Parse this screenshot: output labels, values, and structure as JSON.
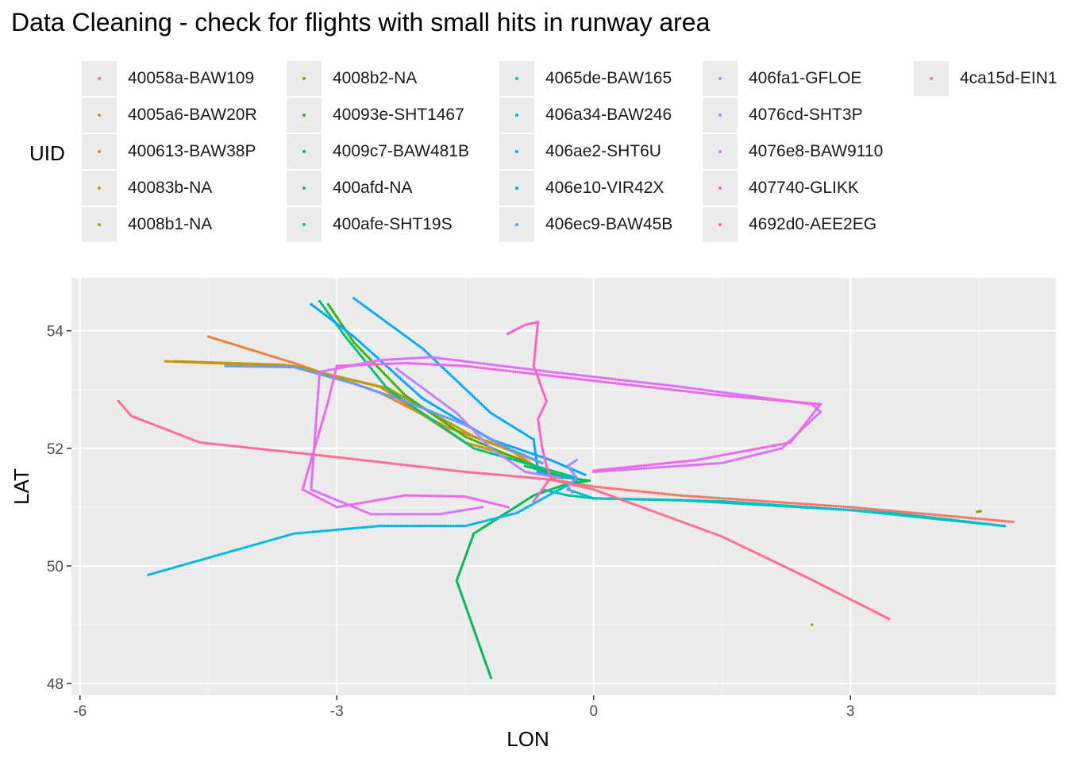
{
  "title": "Data Cleaning - check for flights with small hits in runway area",
  "legend_title": "UID",
  "chart_data": {
    "type": "scatter",
    "title": "Data Cleaning - check for flights with small hits in runway area",
    "xlabel": "LON",
    "ylabel": "LAT",
    "xlim": [
      -6.1,
      5.4
    ],
    "ylim": [
      47.8,
      54.9
    ],
    "xticks": [
      -6,
      -3,
      0,
      3
    ],
    "yticks": [
      48,
      50,
      52,
      54
    ],
    "grid": true,
    "legend_position": "top",
    "series": [
      {
        "name": "40058a-BAW109",
        "color": "#F8766D",
        "points": [
          [
            4.9,
            50.75
          ],
          [
            3.0,
            51.0
          ],
          [
            1.0,
            51.2
          ],
          [
            0.0,
            51.35
          ],
          [
            -0.4,
            51.45
          ],
          [
            -0.55,
            51.47
          ]
        ]
      },
      {
        "name": "4005a6-BAW20R",
        "color": "#EA8331",
        "points": [
          [
            -4.5,
            53.9
          ],
          [
            -3.5,
            53.45
          ],
          [
            -2.5,
            52.95
          ],
          [
            -1.7,
            52.35
          ],
          [
            -1.0,
            52.0
          ],
          [
            -0.45,
            51.47
          ]
        ]
      },
      {
        "name": "400613-BAW38P",
        "color": "#D89000",
        "points": [
          [
            -5.0,
            53.48
          ],
          [
            -3.5,
            53.4
          ],
          [
            -2.5,
            53.05
          ],
          [
            -1.5,
            52.1
          ],
          [
            -0.8,
            51.8
          ],
          [
            -0.45,
            51.47
          ]
        ]
      },
      {
        "name": "40083b-NA",
        "color": "#C09B00",
        "points": [
          [
            -4.9,
            53.48
          ],
          [
            -3.6,
            53.42
          ],
          [
            -2.4,
            53.02
          ],
          [
            -1.4,
            52.2
          ],
          [
            -0.6,
            51.75
          ]
        ]
      },
      {
        "name": "4008b1-NA",
        "color": "#A3A500",
        "points": [
          [
            2.55,
            49.0
          ]
        ]
      },
      {
        "name": "4008b2-NA",
        "color": "#7CAE00",
        "points": [
          [
            4.48,
            50.92
          ],
          [
            4.5,
            50.93
          ],
          [
            4.52,
            50.93
          ]
        ]
      },
      {
        "name": "40093e-SHT1467",
        "color": "#39B600",
        "points": [
          [
            -3.1,
            54.45
          ],
          [
            -2.8,
            53.8
          ],
          [
            -2.2,
            52.9
          ],
          [
            -1.5,
            52.2
          ],
          [
            -0.7,
            51.7
          ],
          [
            -0.4,
            51.5
          ]
        ]
      },
      {
        "name": "4009c7-BAW481B",
        "color": "#00BB4E",
        "points": [
          [
            -1.2,
            48.1
          ],
          [
            -1.6,
            49.75
          ],
          [
            -1.4,
            50.55
          ],
          [
            -0.7,
            51.2
          ],
          [
            -0.3,
            51.4
          ],
          [
            -0.05,
            51.45
          ],
          [
            -0.3,
            51.5
          ],
          [
            -0.8,
            51.7
          ]
        ]
      },
      {
        "name": "400afd-NA",
        "color": "#00BF7D",
        "points": [
          [
            -3.2,
            54.5
          ],
          [
            -2.9,
            53.9
          ],
          [
            -2.4,
            53.0
          ],
          [
            -1.4,
            52.0
          ],
          [
            -0.8,
            51.75
          ],
          [
            -0.2,
            51.5
          ]
        ]
      },
      {
        "name": "400afe-SHT19S",
        "color": "#00C1A3",
        "points": [
          [
            -0.6,
            51.3
          ],
          [
            -0.3,
            51.2
          ],
          [
            0.0,
            51.15
          ],
          [
            1.5,
            51.1
          ],
          [
            3.5,
            50.9
          ],
          [
            4.8,
            50.68
          ]
        ]
      },
      {
        "name": "4065de-BAW165",
        "color": "#00BFC4",
        "points": [
          [
            4.8,
            50.68
          ],
          [
            3.0,
            50.95
          ],
          [
            1.0,
            51.12
          ],
          [
            0.0,
            51.15
          ],
          [
            -0.3,
            51.3
          ]
        ]
      },
      {
        "name": "406a34-BAW246",
        "color": "#00B8E5",
        "points": [
          [
            -5.2,
            49.85
          ],
          [
            -3.5,
            50.55
          ],
          [
            -2.5,
            50.68
          ],
          [
            -1.5,
            50.68
          ],
          [
            -0.9,
            50.9
          ],
          [
            -0.4,
            51.3
          ],
          [
            -0.2,
            51.45
          ]
        ]
      },
      {
        "name": "406ae2-SHT6U",
        "color": "#00ABFD",
        "points": [
          [
            -2.8,
            54.55
          ],
          [
            -2.0,
            53.7
          ],
          [
            -1.2,
            52.6
          ],
          [
            -0.7,
            52.15
          ],
          [
            -0.65,
            51.6
          ],
          [
            -0.4,
            51.5
          ],
          [
            -0.2,
            51.5
          ]
        ]
      },
      {
        "name": "406e10-VIR42X",
        "color": "#00A9FF",
        "points": [
          [
            -3.3,
            54.45
          ],
          [
            -2.8,
            53.9
          ],
          [
            -2.0,
            52.85
          ],
          [
            -1.2,
            52.15
          ],
          [
            -0.5,
            51.8
          ],
          [
            -0.1,
            51.55
          ]
        ]
      },
      {
        "name": "406ec9-BAW45B",
        "color": "#619CFF",
        "points": [
          [
            -4.3,
            53.4
          ],
          [
            -3.5,
            53.38
          ],
          [
            -2.8,
            53.1
          ],
          [
            -2.2,
            52.8
          ],
          [
            -1.5,
            52.4
          ],
          [
            -1.0,
            52.0
          ],
          [
            -0.6,
            51.75
          ]
        ]
      },
      {
        "name": "406fa1-GFLOE",
        "color": "#9590FF",
        "points": [
          [
            -0.25,
            51.25
          ],
          [
            -0.3,
            51.35
          ],
          [
            -0.2,
            51.5
          ],
          [
            -0.25,
            51.6
          ],
          [
            -0.3,
            51.7
          ],
          [
            -0.2,
            51.8
          ]
        ]
      },
      {
        "name": "4076cd-SHT3P",
        "color": "#B983FF",
        "points": [
          [
            -2.3,
            53.35
          ],
          [
            -1.6,
            52.6
          ],
          [
            -1.2,
            52.0
          ],
          [
            -0.8,
            51.6
          ],
          [
            -0.4,
            51.5
          ]
        ]
      },
      {
        "name": "4076e8-BAW9110",
        "color": "#DB72FB",
        "points": [
          [
            -1.3,
            51.0
          ],
          [
            -1.8,
            50.88
          ],
          [
            -2.6,
            50.88
          ],
          [
            -3.3,
            51.3
          ],
          [
            -3.2,
            53.3
          ],
          [
            -2.5,
            53.5
          ],
          [
            -1.9,
            53.55
          ],
          [
            -0.5,
            53.3
          ],
          [
            1.0,
            53.05
          ],
          [
            2.55,
            52.75
          ],
          [
            2.65,
            52.62
          ],
          [
            2.2,
            52.0
          ],
          [
            1.5,
            51.75
          ],
          [
            0.0,
            51.6
          ]
        ]
      },
      {
        "name": "407740-GLIKK",
        "color": "#EF67EB",
        "points": [
          [
            -1.0,
            51.0
          ],
          [
            -1.5,
            51.18
          ],
          [
            -2.2,
            51.2
          ],
          [
            -3.0,
            51.0
          ],
          [
            -3.4,
            51.3
          ],
          [
            -3.1,
            52.8
          ],
          [
            -3.0,
            53.4
          ],
          [
            -2.2,
            53.45
          ],
          [
            -1.5,
            53.4
          ],
          [
            0.0,
            53.15
          ],
          [
            1.5,
            52.9
          ],
          [
            2.65,
            52.75
          ],
          [
            2.3,
            52.1
          ],
          [
            1.2,
            51.8
          ],
          [
            0.0,
            51.62
          ]
        ]
      },
      {
        "name": "4692d0-AEE2EG",
        "color": "#FF61C3",
        "points": [
          [
            -1.0,
            53.95
          ],
          [
            -0.8,
            54.1
          ],
          [
            -0.65,
            54.15
          ],
          [
            -0.7,
            53.4
          ],
          [
            -0.55,
            52.8
          ],
          [
            -0.65,
            52.5
          ],
          [
            -0.6,
            52.0
          ],
          [
            -0.55,
            51.7
          ],
          [
            -0.5,
            51.5
          ],
          [
            -0.7,
            51.1
          ]
        ]
      },
      {
        "name": "4ca15d-EIN1",
        "color": "#FF6C91",
        "points": [
          [
            -5.55,
            52.8
          ],
          [
            -5.4,
            52.55
          ],
          [
            -4.6,
            52.1
          ],
          [
            -3.0,
            51.85
          ],
          [
            -1.5,
            51.6
          ],
          [
            -0.5,
            51.47
          ],
          [
            0.0,
            51.3
          ],
          [
            1.5,
            50.5
          ],
          [
            2.5,
            49.8
          ],
          [
            3.45,
            49.1
          ]
        ]
      }
    ]
  }
}
